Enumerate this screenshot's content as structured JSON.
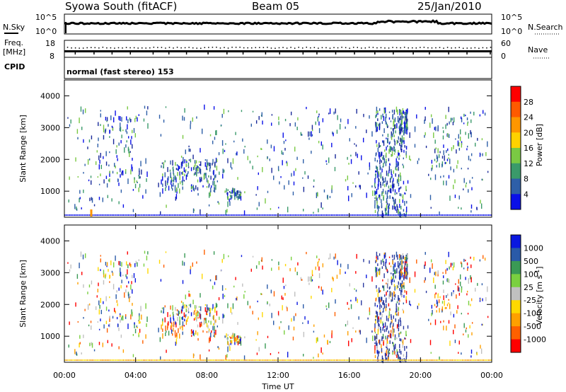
{
  "header": {
    "station": "Syowa South (fitACF)",
    "beam": "Beam 05",
    "date": "25/Jan/2010"
  },
  "noise_panel": {
    "left_label": "N.Sky",
    "right_label": "N.Search",
    "left_ticks": [
      "10^5",
      "10^0"
    ],
    "right_ticks": [
      "10^5",
      "10^0"
    ]
  },
  "freq_panel": {
    "left_label": "Freq.",
    "left_unit": "[MHz]",
    "right_label": "Nave",
    "left_ticks": [
      "18",
      "8"
    ],
    "right_ticks": [
      "60",
      "0"
    ]
  },
  "cpid_panel": {
    "label": "CPID",
    "mode_text": "normal (fast stereo) 153"
  },
  "x_axis": {
    "title": "Time UT",
    "ticks": [
      "00:00",
      "04:00",
      "08:00",
      "12:00",
      "16:00",
      "20:00",
      "00:00"
    ]
  },
  "chart_data": [
    {
      "type": "heatmap",
      "name": "power",
      "ylabel": "Slant Range [km]",
      "x_range_hours": [
        0,
        24
      ],
      "ylim_km": [
        180,
        4500
      ],
      "y_ticks": [
        1000,
        2000,
        3000,
        4000
      ],
      "colorbar": {
        "label": "Power [dB]",
        "ticks": [
          "28",
          "24",
          "20",
          "16",
          "12",
          "8",
          "4"
        ],
        "colors_top_to_bottom": [
          "#ff0000",
          "#ff5a00",
          "#ff9600",
          "#ffd200",
          "#7ac943",
          "#3a9a6a",
          "#2e5fa8",
          "#0a10e8"
        ]
      }
    },
    {
      "type": "heatmap",
      "name": "velocity",
      "ylabel": "Slant Range [km]",
      "x_range_hours": [
        0,
        24
      ],
      "ylim_km": [
        180,
        4500
      ],
      "y_ticks": [
        1000,
        2000,
        3000,
        4000
      ],
      "colorbar": {
        "label": "Velocity [m s^-1]",
        "ticks": [
          "1000",
          "500",
          "100",
          "25",
          "-25",
          "-100",
          "-500",
          "-1000"
        ],
        "colors_top_to_bottom": [
          "#0a18e0",
          "#2a5aa8",
          "#3a9a55",
          "#7ad040",
          "#c0c0c0",
          "#ffd800",
          "#ffa000",
          "#ff6000",
          "#ff0000"
        ]
      }
    }
  ]
}
